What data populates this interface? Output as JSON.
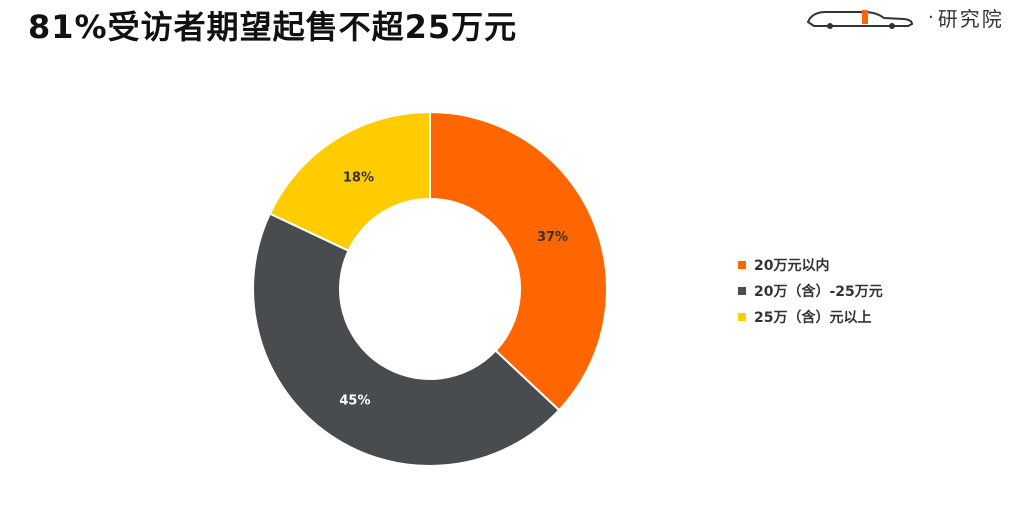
{
  "header": {
    "title": "81%受访者期望起售不超25万元",
    "logo_text": "研究院"
  },
  "chart_data": {
    "type": "pie",
    "subtype": "donut",
    "title": "81%受访者期望起售不超25万元",
    "categories": [
      "20万元以内",
      "20万（含）-25万元",
      "25万（含）元以上"
    ],
    "values": [
      37,
      45,
      18
    ],
    "data_labels": [
      "37%",
      "45%",
      "18%"
    ],
    "colors": [
      "#ff6600",
      "#484c4f",
      "#ffcc00"
    ],
    "label_colors": [
      "#333333",
      "#ffffff",
      "#333333"
    ],
    "legend_position": "right"
  }
}
